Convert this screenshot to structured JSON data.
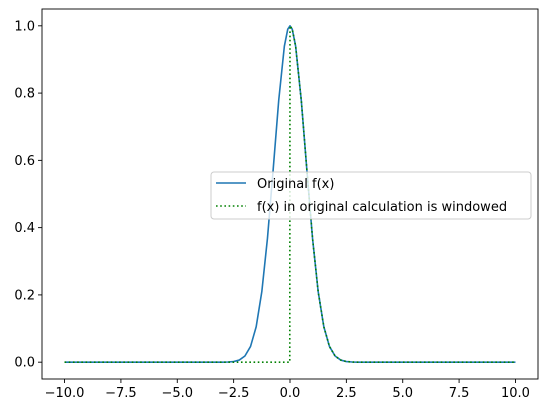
{
  "chart_data": {
    "type": "line",
    "title": "",
    "xlabel": "",
    "ylabel": "",
    "xlim": [
      -11.0,
      11.0
    ],
    "ylim": [
      -0.05,
      1.05
    ],
    "grid": false,
    "legend_position": "center-right",
    "x_ticks": [
      -10.0,
      -7.5,
      -5.0,
      -2.5,
      0.0,
      2.5,
      5.0,
      7.5,
      10.0
    ],
    "x_tick_labels": [
      "−10.0",
      "−7.5",
      "−5.0",
      "−2.5",
      "0.0",
      "2.5",
      "5.0",
      "7.5",
      "10.0"
    ],
    "y_ticks": [
      0.0,
      0.2,
      0.4,
      0.6,
      0.8,
      1.0
    ],
    "y_tick_labels": [
      "0.0",
      "0.2",
      "0.4",
      "0.6",
      "0.8",
      "1.0"
    ],
    "series": [
      {
        "name": "Original f(x)",
        "color": "#1f77b4",
        "style": "solid",
        "x": [
          -10.0,
          -4.0,
          -3.5,
          -3.0,
          -2.75,
          -2.5,
          -2.25,
          -2.0,
          -1.75,
          -1.5,
          -1.25,
          -1.0,
          -0.75,
          -0.5,
          -0.25,
          -0.1,
          0.0,
          0.1,
          0.25,
          0.5,
          0.75,
          1.0,
          1.25,
          1.5,
          1.75,
          2.0,
          2.25,
          2.5,
          2.75,
          3.0,
          3.5,
          4.0,
          10.0
        ],
        "y": [
          0.0,
          0.0,
          0.0,
          0.0001,
          0.0005,
          0.0019,
          0.0063,
          0.0183,
          0.0468,
          0.1054,
          0.2096,
          0.3679,
          0.5698,
          0.7788,
          0.9394,
          0.99,
          1.0,
          0.99,
          0.9394,
          0.7788,
          0.5698,
          0.3679,
          0.2096,
          0.1054,
          0.0468,
          0.0183,
          0.0063,
          0.0019,
          0.0005,
          0.0001,
          0.0,
          0.0,
          0.0
        ]
      },
      {
        "name": "f(x) in original calculation is windowed",
        "color": "#008000",
        "style": "dotted",
        "x": [
          -10.0,
          -0.01,
          0.0,
          0.1,
          0.25,
          0.5,
          0.75,
          1.0,
          1.25,
          1.5,
          1.75,
          2.0,
          2.25,
          2.5,
          2.75,
          3.0,
          3.5,
          4.0,
          10.0
        ],
        "y": [
          0.0,
          0.0,
          1.0,
          0.99,
          0.9394,
          0.7788,
          0.5698,
          0.3679,
          0.2096,
          0.1054,
          0.0468,
          0.0183,
          0.0063,
          0.0019,
          0.0005,
          0.0001,
          0.0,
          0.0,
          0.0
        ]
      }
    ]
  }
}
